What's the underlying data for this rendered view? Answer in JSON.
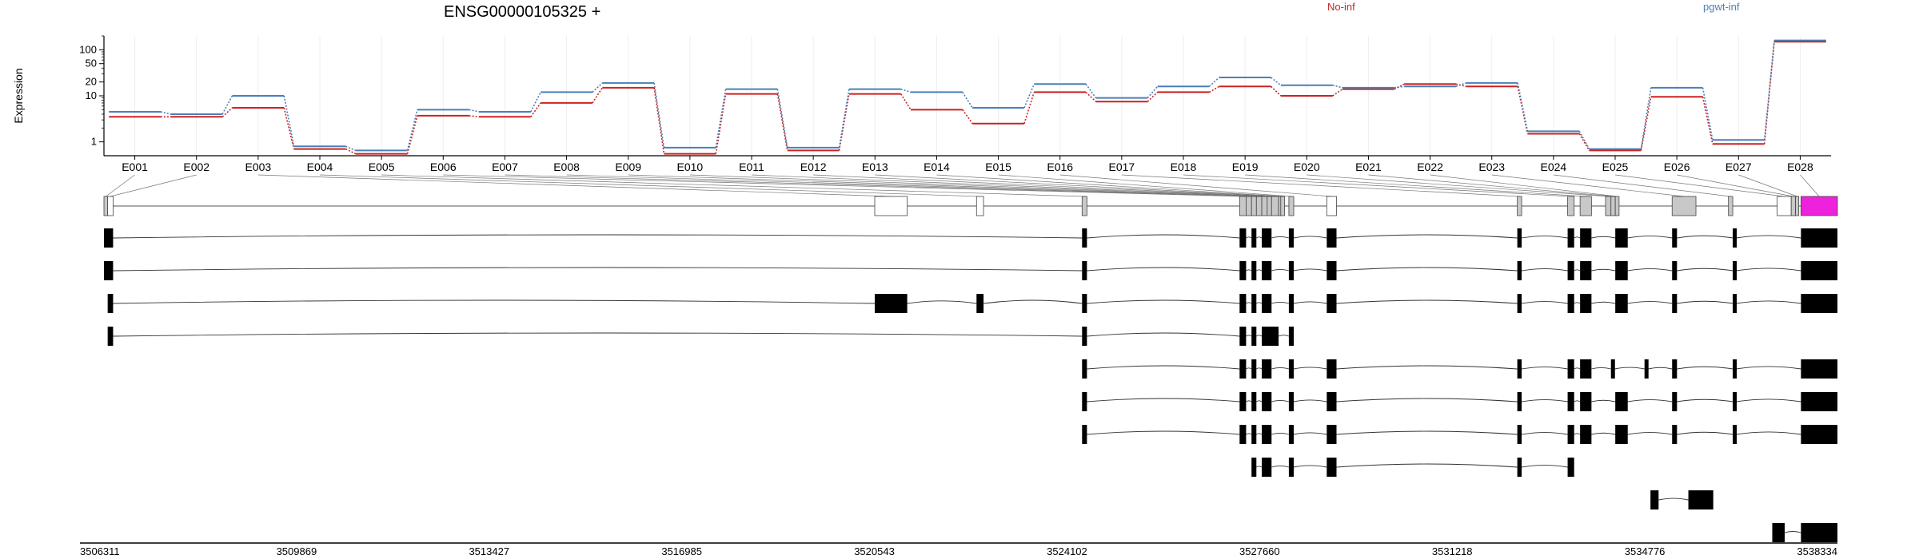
{
  "chart_data": {
    "type": "line",
    "title": "ENSG00000105325 +",
    "ylabel": "Expression",
    "yscale": "log",
    "ylim": [
      0.5,
      200
    ],
    "yticks": [
      1,
      10,
      20,
      50,
      100
    ],
    "ytick_labels": [
      "1",
      "10",
      "20",
      "50",
      "100"
    ],
    "grid": true,
    "legend_position": "top",
    "categories": [
      "E001",
      "E002",
      "E003",
      "E004",
      "E005",
      "E006",
      "E007",
      "E008",
      "E009",
      "E010",
      "E011",
      "E012",
      "E013",
      "E014",
      "E015",
      "E016",
      "E017",
      "E018",
      "E019",
      "E020",
      "E021",
      "E022",
      "E023",
      "E024",
      "E025",
      "E026",
      "E027",
      "E028"
    ],
    "series": [
      {
        "name": "No-inf",
        "color": "#cc2222",
        "values": [
          3.5,
          3.5,
          5.5,
          0.7,
          0.55,
          3.7,
          3.5,
          7,
          15,
          0.55,
          11,
          0.65,
          11,
          5,
          2.5,
          12,
          7.5,
          12,
          16,
          10,
          14,
          18,
          16,
          1.5,
          0.65,
          9.5,
          0.9,
          150
        ]
      },
      {
        "name": "pgwt-inf",
        "color": "#4a7fb8",
        "values": [
          4.5,
          4,
          10,
          0.8,
          0.65,
          5,
          4.5,
          12,
          19,
          0.75,
          14,
          0.75,
          14,
          12,
          5.5,
          18,
          9,
          16,
          25,
          17,
          15,
          16,
          19,
          1.7,
          0.7,
          15,
          1.1,
          160
        ]
      }
    ],
    "gene_model": {
      "genomic_start": 3506311,
      "genomic_end": 3538334,
      "axis_ticks": [
        3506311,
        3509869,
        3513427,
        3516985,
        3520543,
        3524102,
        3527660,
        3531218,
        3534776,
        3538334
      ],
      "highlight_color": "#ee22dd",
      "exons": [
        {
          "id": "E001",
          "start": 3506311,
          "end": 3506380
        },
        {
          "id": "E002",
          "start": 3506380,
          "end": 3506480
        },
        {
          "id": "E003",
          "start": 3520550,
          "end": 3521150
        },
        {
          "id": "E004",
          "start": 3522430,
          "end": 3522560
        },
        {
          "id": "E005",
          "start": 3524380,
          "end": 3524470
        },
        {
          "id": "E006",
          "start": 3527290,
          "end": 3527410
        },
        {
          "id": "E007",
          "start": 3527410,
          "end": 3527510
        },
        {
          "id": "E008",
          "start": 3527510,
          "end": 3527600
        },
        {
          "id": "E009",
          "start": 3527600,
          "end": 3527700
        },
        {
          "id": "E010",
          "start": 3527700,
          "end": 3527800
        },
        {
          "id": "E011",
          "start": 3527800,
          "end": 3527880
        },
        {
          "id": "E012",
          "start": 3527880,
          "end": 3528010
        },
        {
          "id": "E013",
          "start": 3528010,
          "end": 3528050
        },
        {
          "id": "E014",
          "start": 3528050,
          "end": 3528120
        },
        {
          "id": "E015",
          "start": 3528200,
          "end": 3528290
        },
        {
          "id": "E016",
          "start": 3528900,
          "end": 3529080
        },
        {
          "id": "E017",
          "start": 3532420,
          "end": 3532500
        },
        {
          "id": "E018",
          "start": 3533350,
          "end": 3533470
        },
        {
          "id": "E019",
          "start": 3533580,
          "end": 3533790
        },
        {
          "id": "E020",
          "start": 3534050,
          "end": 3534150
        },
        {
          "id": "E021",
          "start": 3534150,
          "end": 3534230
        },
        {
          "id": "E022",
          "start": 3534230,
          "end": 3534300
        },
        {
          "id": "E023",
          "start": 3535280,
          "end": 3535720
        },
        {
          "id": "E024",
          "start": 3536320,
          "end": 3536400
        },
        {
          "id": "E025",
          "start": 3537220,
          "end": 3537480
        },
        {
          "id": "E026",
          "start": 3537480,
          "end": 3537560
        },
        {
          "id": "E027",
          "start": 3537560,
          "end": 3537620
        },
        {
          "id": "E028",
          "start": 3537660,
          "end": 3538334
        }
      ],
      "transcripts": [
        [
          [
            3506311,
            3506480
          ],
          [
            3524380,
            3524470
          ],
          [
            3527290,
            3527410
          ],
          [
            3527510,
            3527600
          ],
          [
            3527700,
            3527880
          ],
          [
            3528200,
            3528290
          ],
          [
            3528900,
            3529080
          ],
          [
            3532420,
            3532500
          ],
          [
            3533350,
            3533470
          ],
          [
            3533580,
            3533790
          ],
          [
            3534230,
            3534460
          ],
          [
            3535280,
            3535370
          ],
          [
            3536400,
            3536460
          ],
          [
            3537660,
            3538334
          ]
        ],
        [
          [
            3506311,
            3506480
          ],
          [
            3524380,
            3524470
          ],
          [
            3527290,
            3527410
          ],
          [
            3527510,
            3527600
          ],
          [
            3527700,
            3527880
          ],
          [
            3528200,
            3528290
          ],
          [
            3528900,
            3529080
          ],
          [
            3532420,
            3532500
          ],
          [
            3533350,
            3533470
          ],
          [
            3533580,
            3533790
          ],
          [
            3534230,
            3534460
          ],
          [
            3535280,
            3535370
          ],
          [
            3536400,
            3536460
          ],
          [
            3537660,
            3538334
          ]
        ],
        [
          [
            3506380,
            3506480
          ],
          [
            3520550,
            3521150
          ],
          [
            3522430,
            3522560
          ],
          [
            3524380,
            3524470
          ],
          [
            3527290,
            3527410
          ],
          [
            3527510,
            3527600
          ],
          [
            3527700,
            3527880
          ],
          [
            3528200,
            3528290
          ],
          [
            3528900,
            3529080
          ],
          [
            3532420,
            3532500
          ],
          [
            3533350,
            3533470
          ],
          [
            3533580,
            3533790
          ],
          [
            3534230,
            3534460
          ],
          [
            3535280,
            3535370
          ],
          [
            3536400,
            3536460
          ],
          [
            3537660,
            3538334
          ]
        ],
        [
          [
            3506380,
            3506480
          ],
          [
            3524380,
            3524470
          ],
          [
            3527290,
            3527410
          ],
          [
            3527510,
            3527600
          ],
          [
            3527700,
            3528010
          ],
          [
            3528200,
            3528290
          ]
        ],
        [
          [
            3524380,
            3524470
          ],
          [
            3527290,
            3527410
          ],
          [
            3527510,
            3527600
          ],
          [
            3527700,
            3527880
          ],
          [
            3528200,
            3528290
          ],
          [
            3528900,
            3529080
          ],
          [
            3532420,
            3532500
          ],
          [
            3533350,
            3533470
          ],
          [
            3533580,
            3533790
          ],
          [
            3534150,
            3534220
          ],
          [
            3534770,
            3534840
          ],
          [
            3535280,
            3535370
          ],
          [
            3536400,
            3536460
          ],
          [
            3537660,
            3538334
          ]
        ],
        [
          [
            3524380,
            3524470
          ],
          [
            3527290,
            3527410
          ],
          [
            3527510,
            3527600
          ],
          [
            3527700,
            3527880
          ],
          [
            3528200,
            3528290
          ],
          [
            3528900,
            3529080
          ],
          [
            3532420,
            3532500
          ],
          [
            3533350,
            3533470
          ],
          [
            3533580,
            3533790
          ],
          [
            3534230,
            3534460
          ],
          [
            3535280,
            3535370
          ],
          [
            3536400,
            3536460
          ],
          [
            3537660,
            3538334
          ]
        ],
        [
          [
            3524380,
            3524470
          ],
          [
            3527290,
            3527410
          ],
          [
            3527510,
            3527600
          ],
          [
            3527700,
            3527880
          ],
          [
            3528200,
            3528290
          ],
          [
            3528900,
            3529080
          ],
          [
            3532420,
            3532500
          ],
          [
            3533350,
            3533470
          ],
          [
            3533580,
            3533790
          ],
          [
            3534230,
            3534460
          ],
          [
            3535280,
            3535370
          ],
          [
            3536400,
            3536460
          ],
          [
            3537660,
            3538334
          ]
        ],
        [
          [
            3527510,
            3527600
          ],
          [
            3527700,
            3527880
          ],
          [
            3528200,
            3528290
          ],
          [
            3528900,
            3529080
          ],
          [
            3532420,
            3532500
          ],
          [
            3533350,
            3533470
          ]
        ],
        [
          [
            3534880,
            3535030
          ],
          [
            3535580,
            3536040
          ]
        ],
        [
          [
            3537130,
            3537360
          ],
          [
            3537660,
            3538334
          ]
        ]
      ]
    }
  }
}
